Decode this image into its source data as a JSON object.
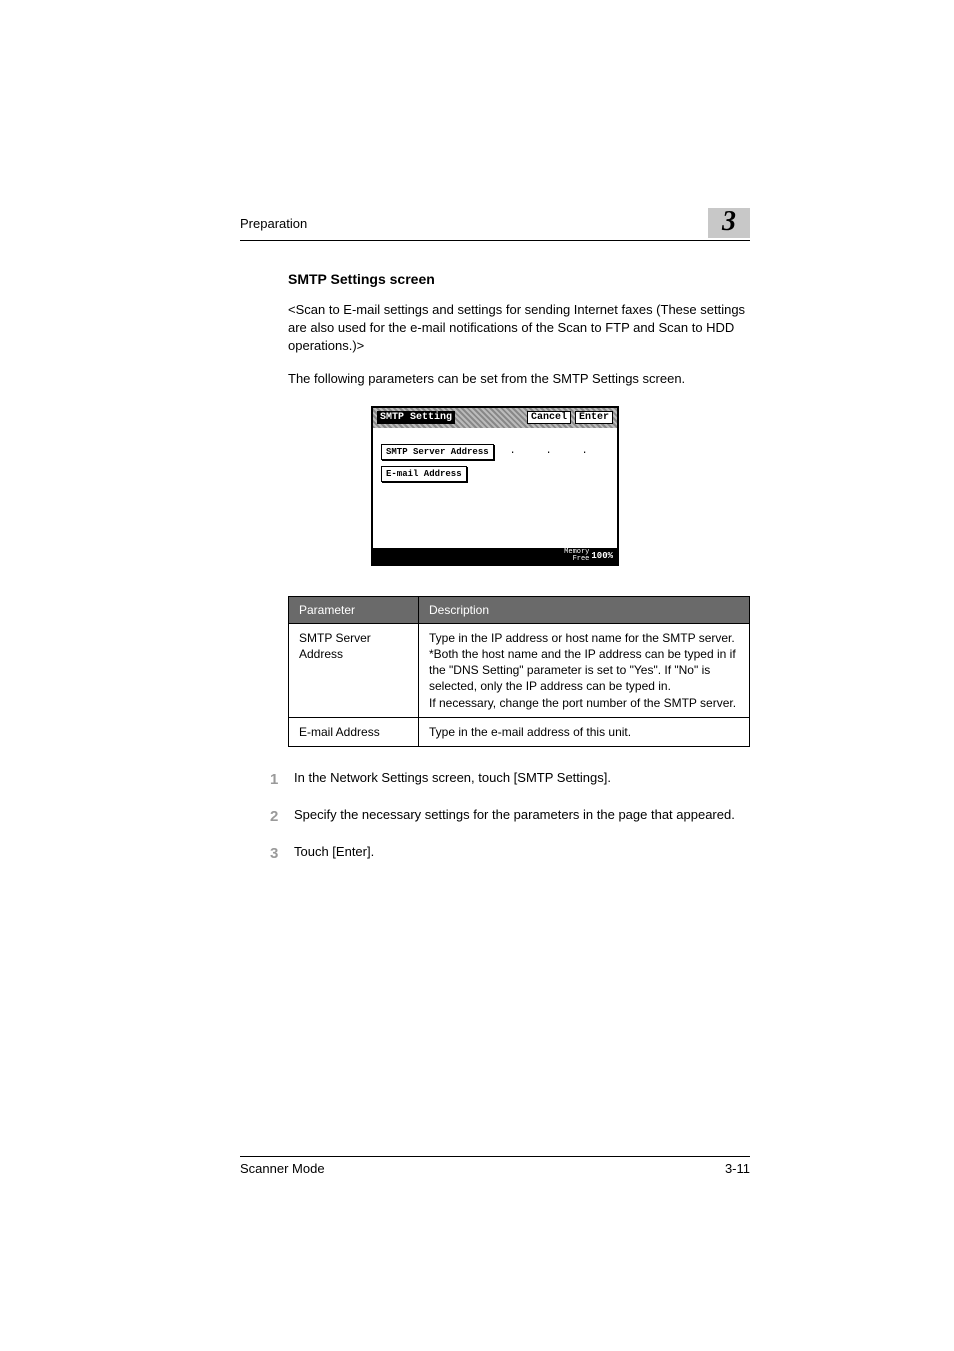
{
  "header": {
    "section": "Preparation",
    "chapter_number": "3"
  },
  "section_title": "SMTP Settings screen",
  "intro_para": "<Scan to E-mail settings and settings for sending Internet faxes (These settings are also used for the e-mail notifications of the Scan to FTP and Scan to HDD operations.)>",
  "lead_para": "The following parameters can be set from the SMTP Settings screen.",
  "lcd": {
    "title": "SMTP Setting",
    "cancel": "Cancel",
    "enter": "Enter",
    "field1": "SMTP Server Address",
    "dots": ".  .  .",
    "field2": "E-mail Address",
    "memory_label": "Memory\nFree",
    "memory_value": "100%"
  },
  "table": {
    "head_param": "Parameter",
    "head_desc": "Description",
    "rows": [
      {
        "param": "SMTP Server Address",
        "desc": "Type in the IP address or host name for the SMTP server.\n*Both the host name and the IP address can be typed in if the \"DNS Setting\" parameter is set to \"Yes\". If \"No\" is selected, only the IP address can be typed in.\nIf necessary, change the port number of the SMTP server."
      },
      {
        "param": "E-mail Address",
        "desc": "Type in the e-mail address of this unit."
      }
    ]
  },
  "steps": [
    {
      "n": "1",
      "t": "In the Network Settings screen, touch [SMTP Settings]."
    },
    {
      "n": "2",
      "t": "Specify the necessary settings for the parameters in the page that appeared."
    },
    {
      "n": "3",
      "t": "Touch [Enter]."
    }
  ],
  "footer": {
    "left": "Scanner Mode",
    "right": "3-11"
  },
  "colors": {
    "table_header_bg": "#6a6a6a",
    "step_num": "#9a9a9a",
    "chapter_bg": "#c8c8c8"
  }
}
